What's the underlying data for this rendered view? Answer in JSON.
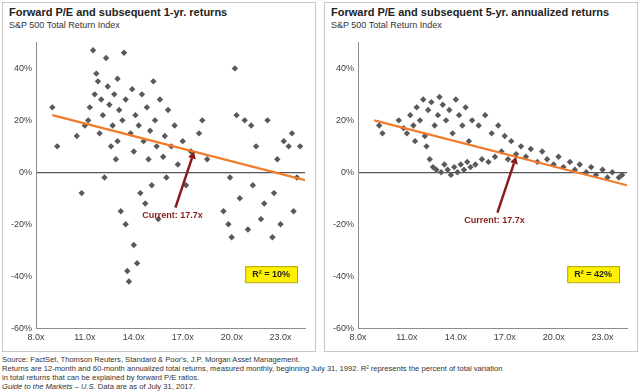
{
  "chart_data": [
    {
      "type": "scatter",
      "title": "Forward P/E and subsequent 1-yr. returns",
      "subtitle": "S&P 500 Total Return Index",
      "xlim": [
        8,
        24.5
      ],
      "xticks": [
        {
          "value": 8,
          "label": "8.0x"
        },
        {
          "value": 11,
          "label": "11.0x"
        },
        {
          "value": 14,
          "label": "14.0x"
        },
        {
          "value": 17,
          "label": "17.0x"
        },
        {
          "value": 20,
          "label": "20.0x"
        },
        {
          "value": 23,
          "label": "23.0x"
        }
      ],
      "ylim": [
        -60,
        50
      ],
      "yticks": [
        {
          "value": -60,
          "label": "-60%"
        },
        {
          "value": -40,
          "label": "-40%"
        },
        {
          "value": -20,
          "label": "-20%"
        },
        {
          "value": 0,
          "label": "0%"
        },
        {
          "value": 20,
          "label": "20%"
        },
        {
          "value": 40,
          "label": "40%"
        }
      ],
      "grid": false,
      "series": [
        {
          "type": "scatter",
          "color": "#595959",
          "marker": "diamond",
          "x": [
            9.0,
            9.3,
            10.5,
            10.8,
            11.0,
            11.2,
            11.3,
            11.5,
            11.6,
            11.7,
            11.8,
            11.9,
            12.0,
            12.1,
            12.2,
            12.3,
            12.4,
            12.5,
            12.6,
            12.7,
            12.8,
            12.9,
            13.0,
            13.0,
            13.1,
            13.2,
            13.3,
            13.4,
            13.5,
            13.5,
            13.6,
            13.7,
            13.8,
            13.9,
            14.0,
            14.0,
            14.1,
            14.2,
            14.3,
            14.4,
            14.5,
            14.6,
            14.7,
            14.8,
            14.9,
            15.0,
            15.1,
            15.2,
            15.3,
            15.4,
            15.5,
            15.6,
            15.8,
            15.9,
            16.0,
            16.1,
            16.3,
            16.5,
            16.7,
            17.0,
            17.2,
            17.5,
            18.0,
            18.2,
            18.5,
            19.5,
            19.8,
            20.0,
            20.2,
            20.3,
            20.5,
            20.8,
            21.0,
            21.2,
            21.3,
            21.5,
            21.8,
            22.0,
            22.2,
            22.5,
            22.8,
            23.0,
            23.2,
            23.5,
            23.7,
            24.0,
            24.2,
            23.8,
            22.6,
            19.9
          ],
          "values": [
            25,
            10,
            14,
            -8,
            18,
            20,
            25,
            47,
            30,
            38,
            35,
            15,
            28,
            22,
            -2,
            44,
            33,
            26,
            10,
            18,
            30,
            5,
            36,
            12,
            24,
            -15,
            20,
            46,
            28,
            -20,
            -38,
            -42,
            15,
            32,
            8,
            -28,
            22,
            -35,
            18,
            -8,
            30,
            12,
            -12,
            25,
            5,
            16,
            -5,
            35,
            20,
            10,
            -18,
            28,
            6,
            14,
            -2,
            24,
            10,
            18,
            3,
            12,
            -5,
            8,
            15,
            20,
            5,
            -15,
            -20,
            -25,
            40,
            22,
            -10,
            20,
            -22,
            18,
            -5,
            10,
            -18,
            -12,
            20,
            -25,
            5,
            -20,
            12,
            10,
            15,
            -2,
            10,
            -15,
            -8,
            -2
          ]
        },
        {
          "type": "line",
          "color": "#f07b2a",
          "line_style": "solid",
          "x": [
            9.0,
            24.5
          ],
          "values": [
            22,
            -3
          ]
        }
      ],
      "annotations": [
        {
          "text": "Current: 17.7x",
          "x": 17.7,
          "y": 8,
          "color": "#8b1a1a"
        },
        {
          "text": "R² = 10%",
          "color": "#fff200"
        }
      ]
    },
    {
      "type": "scatter",
      "title": "Forward P/E and subsequent 5-yr. annualized returns",
      "subtitle": "S&P 500 Total Return Index",
      "xlim": [
        8,
        24.5
      ],
      "xticks": [
        {
          "value": 8,
          "label": "8.0x"
        },
        {
          "value": 11,
          "label": "11.0x"
        },
        {
          "value": 14,
          "label": "14.0x"
        },
        {
          "value": 17,
          "label": "17.0x"
        },
        {
          "value": 20,
          "label": "20.0x"
        },
        {
          "value": 23,
          "label": "23.0x"
        }
      ],
      "ylim": [
        -60,
        50
      ],
      "yticks": [
        {
          "value": -60,
          "label": "-60%"
        },
        {
          "value": -40,
          "label": "-40%"
        },
        {
          "value": -20,
          "label": "-20%"
        },
        {
          "value": 0,
          "label": "0%"
        },
        {
          "value": 20,
          "label": "20%"
        },
        {
          "value": 40,
          "label": "40%"
        }
      ],
      "grid": false,
      "series": [
        {
          "type": "scatter",
          "color": "#595959",
          "marker": "diamond",
          "x": [
            9.3,
            9.5,
            10.5,
            10.8,
            11.0,
            11.2,
            11.4,
            11.5,
            11.6,
            11.8,
            12.0,
            12.1,
            12.2,
            12.3,
            12.4,
            12.5,
            12.6,
            12.7,
            12.8,
            12.9,
            13.0,
            13.1,
            13.2,
            13.3,
            13.4,
            13.5,
            13.6,
            13.7,
            13.8,
            13.9,
            14.0,
            14.1,
            14.2,
            14.3,
            14.4,
            14.5,
            14.6,
            14.7,
            14.8,
            14.9,
            15.0,
            15.2,
            15.4,
            15.6,
            15.8,
            16.0,
            16.2,
            16.4,
            16.6,
            16.8,
            17.0,
            17.2,
            17.4,
            17.7,
            18.0,
            18.3,
            18.6,
            19.0,
            19.3,
            19.6,
            20.0,
            20.3,
            20.6,
            21.0,
            21.3,
            21.6,
            22.0,
            22.3,
            22.6,
            23.0,
            23.3,
            23.6,
            24.0,
            24.2
          ],
          "values": [
            18,
            15,
            20,
            17,
            15,
            22,
            18,
            12,
            25,
            20,
            28,
            14,
            10,
            24,
            5,
            27,
            2,
            18,
            1,
            22,
            29,
            0,
            26,
            3,
            20,
            1,
            24,
            -1,
            15,
            2,
            28,
            0,
            22,
            3,
            18,
            1,
            25,
            4,
            12,
            2,
            20,
            3,
            18,
            5,
            22,
            4,
            15,
            6,
            18,
            8,
            14,
            5,
            12,
            7,
            10,
            6,
            9,
            4,
            8,
            5,
            3,
            6,
            2,
            4,
            1,
            3,
            0,
            2,
            -1,
            1,
            -2,
            0,
            -2,
            -1
          ]
        },
        {
          "type": "line",
          "color": "#f07b2a",
          "line_style": "solid",
          "x": [
            9.0,
            24.5
          ],
          "values": [
            20,
            -5
          ]
        }
      ],
      "annotations": [
        {
          "text": "Current: 17.7x",
          "x": 17.7,
          "y": 6,
          "color": "#8b1a1a"
        },
        {
          "text": "R² = 42%",
          "color": "#fff200"
        }
      ]
    }
  ],
  "footnote": [
    "Source: FactSet, Thomson Reuters, Standard & Poor's, J.P. Morgan Asset Management.",
    "Returns are 12-month and 60-month annualized total returns, measured monthly, beginning July 31, 1992. R² represents the percent of total variation",
    "in total returns that can be explained by forward P/E ratios."
  ],
  "footnote_italic": "Guide to the Markets – U.S.",
  "footnote_end": "Data are as of July 31, 2017."
}
